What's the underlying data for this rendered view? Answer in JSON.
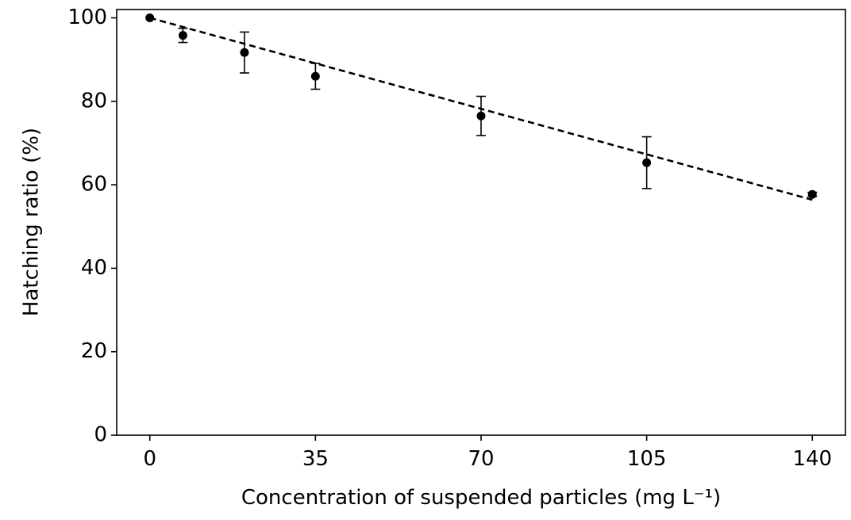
{
  "chart_data": {
    "type": "scatter",
    "x_label": "Concentration of suspended particles (mg L⁻¹)",
    "y_label": "Hatching ratio (%)",
    "x": [
      0,
      7,
      20,
      35,
      70,
      105,
      140
    ],
    "values": [
      100,
      95.8,
      91.7,
      86,
      76.5,
      65.3,
      57.7
    ],
    "errors": [
      0,
      1.7,
      4.9,
      3.1,
      4.7,
      6.2,
      0.5
    ],
    "color": "#000000",
    "trend_line": {
      "x": [
        0,
        140
      ],
      "values": [
        100,
        56.4
      ],
      "color": "#000000",
      "dashed": true
    },
    "xlim": [
      -7,
      147
    ],
    "xticks": [
      0,
      35,
      70,
      105,
      140
    ],
    "ylim": [
      0,
      102
    ],
    "yticks": [
      0,
      20,
      40,
      60,
      80,
      100
    ]
  }
}
